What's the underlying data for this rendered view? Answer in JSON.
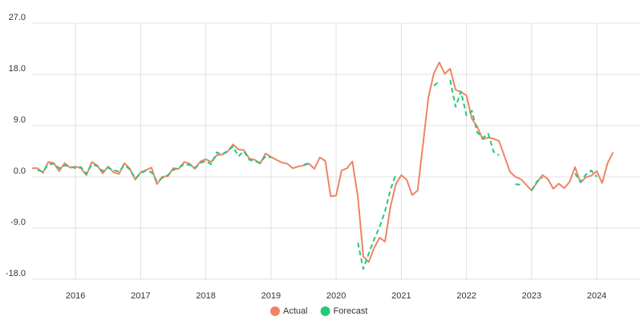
{
  "chart_data": {
    "type": "line",
    "categories": [
      null,
      null,
      null,
      null,
      null,
      null,
      null,
      null,
      "2016",
      null,
      null,
      null,
      null,
      null,
      null,
      null,
      null,
      null,
      null,
      null,
      "2017",
      null,
      null,
      null,
      null,
      null,
      null,
      null,
      null,
      null,
      null,
      null,
      "2018",
      null,
      null,
      null,
      null,
      null,
      null,
      null,
      null,
      null,
      null,
      null,
      "2019",
      null,
      null,
      null,
      null,
      null,
      null,
      null,
      null,
      null,
      null,
      null,
      "2020",
      null,
      null,
      null,
      null,
      null,
      null,
      null,
      null,
      null,
      null,
      null,
      "2021",
      null,
      null,
      null,
      null,
      null,
      null,
      null,
      null,
      null,
      null,
      null,
      "2022",
      null,
      null,
      null,
      null,
      null,
      null,
      null,
      null,
      null,
      null,
      null,
      "2023",
      null,
      null,
      null,
      null,
      null,
      null,
      null,
      null,
      null,
      null,
      null,
      "2024",
      null,
      null,
      null
    ],
    "series": [
      {
        "name": "Actual",
        "color": "#ee8466",
        "values": [
          1.5,
          1.5,
          0.7,
          2.6,
          2.4,
          1.0,
          2.4,
          1.6,
          1.8,
          1.5,
          0.3,
          2.6,
          2.0,
          0.6,
          1.8,
          0.8,
          0.5,
          2.4,
          1.4,
          -0.5,
          0.8,
          1.2,
          1.6,
          -1.3,
          0.0,
          0.1,
          1.5,
          1.4,
          2.6,
          2.3,
          1.4,
          2.7,
          3.1,
          2.6,
          3.8,
          3.9,
          4.4,
          5.7,
          4.8,
          4.7,
          3.2,
          3.0,
          2.3,
          4.1,
          3.5,
          3.0,
          2.5,
          2.3,
          1.5,
          1.8,
          2.0,
          2.3,
          1.4,
          3.4,
          2.8,
          -3.4,
          -3.3,
          1.1,
          1.5,
          2.7,
          -3.5,
          -14.0,
          -15.0,
          -12.5,
          -10.7,
          -11.4,
          -5.3,
          -1.3,
          0.3,
          -0.5,
          -3.2,
          -2.4,
          5.7,
          14.0,
          18.2,
          20.1,
          18.1,
          19.0,
          15.3,
          14.9,
          14.3,
          10.2,
          8.8,
          6.6,
          6.9,
          6.7,
          6.3,
          3.6,
          0.9,
          0.0,
          -0.4,
          -1.4,
          -2.4,
          -1.0,
          0.3,
          -0.4,
          -2.1,
          -1.2,
          -2.0,
          -0.9,
          1.7,
          -1.0,
          -0.1,
          0.2,
          1.0,
          -1.1,
          2.4,
          4.3
        ]
      },
      {
        "name": "Forecast",
        "color": "#22c97a",
        "values": [
          null,
          1.2,
          0.9,
          2.2,
          2.3,
          1.5,
          2.0,
          1.8,
          1.5,
          1.7,
          0.5,
          2.2,
          1.9,
          1.0,
          1.6,
          1.2,
          0.9,
          2.1,
          1.3,
          -0.3,
          0.6,
          1.1,
          0.8,
          -0.8,
          -0.2,
          0.3,
          1.2,
          1.6,
          2.2,
          2.1,
          1.6,
          2.4,
          2.8,
          2.2,
          4.3,
          3.9,
          4.6,
          5.3,
          3.6,
          4.5,
          3.0,
          2.7,
          2.5,
          3.6,
          3.4,
          null,
          null,
          null,
          null,
          null,
          2.1,
          2.4,
          null,
          3.0,
          null,
          null,
          null,
          null,
          null,
          null,
          -11.6,
          -16.2,
          -13.5,
          -11.0,
          -8.8,
          -6.1,
          -2.3,
          0.5,
          null,
          null,
          null,
          null,
          null,
          null,
          16.0,
          16.8,
          null,
          17.0,
          12.3,
          15.0,
          10.8,
          11.6,
          7.8,
          6.8,
          7.6,
          4.4,
          3.8,
          null,
          null,
          -1.3,
          -1.4,
          null,
          -2.4,
          -0.8,
          -0.1,
          null,
          null,
          null,
          null,
          null,
          0.6,
          -0.9,
          0.4,
          1.1,
          0.0,
          null,
          null,
          null
        ]
      }
    ],
    "ylim": [
      -18,
      27
    ],
    "yticks": [
      {
        "value": -18,
        "label": "-18.0"
      },
      {
        "value": -9,
        "label": "-9.0"
      },
      {
        "value": 0,
        "label": "0.0"
      },
      {
        "value": 9,
        "label": "9.0"
      },
      {
        "value": 18,
        "label": "18.0"
      },
      {
        "value": 27,
        "label": "27.0"
      }
    ],
    "grid": true,
    "legend": "bottom"
  }
}
